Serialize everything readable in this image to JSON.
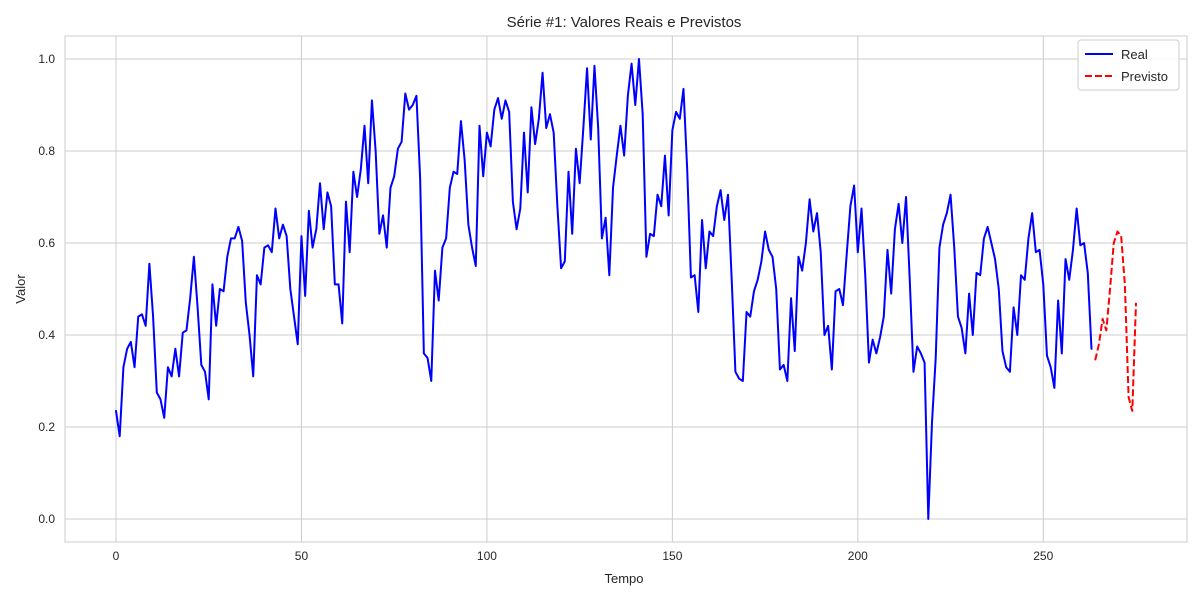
{
  "chart_data": {
    "type": "line",
    "title": "Série #1: Valores Reais e Previstos",
    "xlabel": "Tempo",
    "ylabel": "Valor",
    "xlim": [
      -13.75,
      288.75
    ],
    "ylim": [
      -0.05,
      1.05
    ],
    "xticks": [
      0,
      50,
      100,
      150,
      200,
      250
    ],
    "xtick_labels": [
      "0",
      "50",
      "100",
      "150",
      "200",
      "250"
    ],
    "yticks": [
      0.0,
      0.2,
      0.4,
      0.6,
      0.8,
      1.0
    ],
    "ytick_labels": [
      "0.0",
      "0.2",
      "0.4",
      "0.6",
      "0.8",
      "1.0"
    ],
    "grid": true,
    "legend_position": "top-right",
    "series": [
      {
        "name": "Real",
        "color": "#0000ff",
        "linestyle": "solid",
        "x_start": 0,
        "values": [
          0.235,
          0.18,
          0.33,
          0.37,
          0.385,
          0.33,
          0.44,
          0.445,
          0.42,
          0.555,
          0.44,
          0.275,
          0.26,
          0.22,
          0.33,
          0.31,
          0.37,
          0.31,
          0.405,
          0.41,
          0.48,
          0.57,
          0.46,
          0.335,
          0.32,
          0.26,
          0.51,
          0.42,
          0.5,
          0.495,
          0.57,
          0.61,
          0.61,
          0.635,
          0.605,
          0.47,
          0.4,
          0.31,
          0.53,
          0.51,
          0.59,
          0.595,
          0.58,
          0.675,
          0.61,
          0.64,
          0.615,
          0.5,
          0.44,
          0.38,
          0.615,
          0.485,
          0.67,
          0.59,
          0.63,
          0.73,
          0.63,
          0.71,
          0.68,
          0.51,
          0.51,
          0.425,
          0.69,
          0.58,
          0.755,
          0.7,
          0.76,
          0.855,
          0.73,
          0.91,
          0.8,
          0.62,
          0.66,
          0.59,
          0.72,
          0.745,
          0.805,
          0.82,
          0.925,
          0.89,
          0.9,
          0.92,
          0.74,
          0.36,
          0.35,
          0.3,
          0.54,
          0.475,
          0.59,
          0.61,
          0.72,
          0.755,
          0.75,
          0.865,
          0.78,
          0.64,
          0.59,
          0.55,
          0.855,
          0.745,
          0.84,
          0.81,
          0.89,
          0.915,
          0.87,
          0.91,
          0.885,
          0.69,
          0.63,
          0.675,
          0.84,
          0.71,
          0.895,
          0.815,
          0.87,
          0.97,
          0.85,
          0.88,
          0.84,
          0.68,
          0.545,
          0.56,
          0.755,
          0.62,
          0.805,
          0.73,
          0.85,
          0.98,
          0.825,
          0.985,
          0.85,
          0.61,
          0.655,
          0.53,
          0.72,
          0.79,
          0.855,
          0.79,
          0.92,
          0.99,
          0.9,
          1.0,
          0.88,
          0.57,
          0.62,
          0.615,
          0.705,
          0.68,
          0.79,
          0.66,
          0.845,
          0.885,
          0.87,
          0.935,
          0.76,
          0.525,
          0.53,
          0.45,
          0.65,
          0.545,
          0.625,
          0.615,
          0.68,
          0.715,
          0.65,
          0.705,
          0.52,
          0.32,
          0.305,
          0.3,
          0.45,
          0.44,
          0.495,
          0.52,
          0.56,
          0.625,
          0.585,
          0.57,
          0.5,
          0.325,
          0.335,
          0.3,
          0.48,
          0.365,
          0.57,
          0.54,
          0.6,
          0.695,
          0.625,
          0.665,
          0.58,
          0.4,
          0.42,
          0.325,
          0.495,
          0.5,
          0.465,
          0.575,
          0.68,
          0.725,
          0.58,
          0.675,
          0.53,
          0.34,
          0.39,
          0.36,
          0.395,
          0.44,
          0.585,
          0.49,
          0.63,
          0.685,
          0.6,
          0.7,
          0.52,
          0.32,
          0.375,
          0.36,
          0.34,
          0.0,
          0.21,
          0.35,
          0.59,
          0.64,
          0.665,
          0.705,
          0.59,
          0.44,
          0.415,
          0.36,
          0.49,
          0.4,
          0.535,
          0.53,
          0.61,
          0.635,
          0.6,
          0.565,
          0.5,
          0.365,
          0.33,
          0.32,
          0.46,
          0.4,
          0.53,
          0.52,
          0.61,
          0.665,
          0.58,
          0.585,
          0.51,
          0.355,
          0.33,
          0.285,
          0.475,
          0.36,
          0.565,
          0.52,
          0.585,
          0.675,
          0.595,
          0.6,
          0.535,
          0.37
        ]
      },
      {
        "name": "Previsto",
        "color": "#ff0000",
        "linestyle": "dashed",
        "x_start": 264,
        "values": [
          0.345,
          0.38,
          0.435,
          0.41,
          0.5,
          0.6,
          0.625,
          0.615,
          0.51,
          0.265,
          0.235,
          0.47
        ]
      }
    ]
  }
}
